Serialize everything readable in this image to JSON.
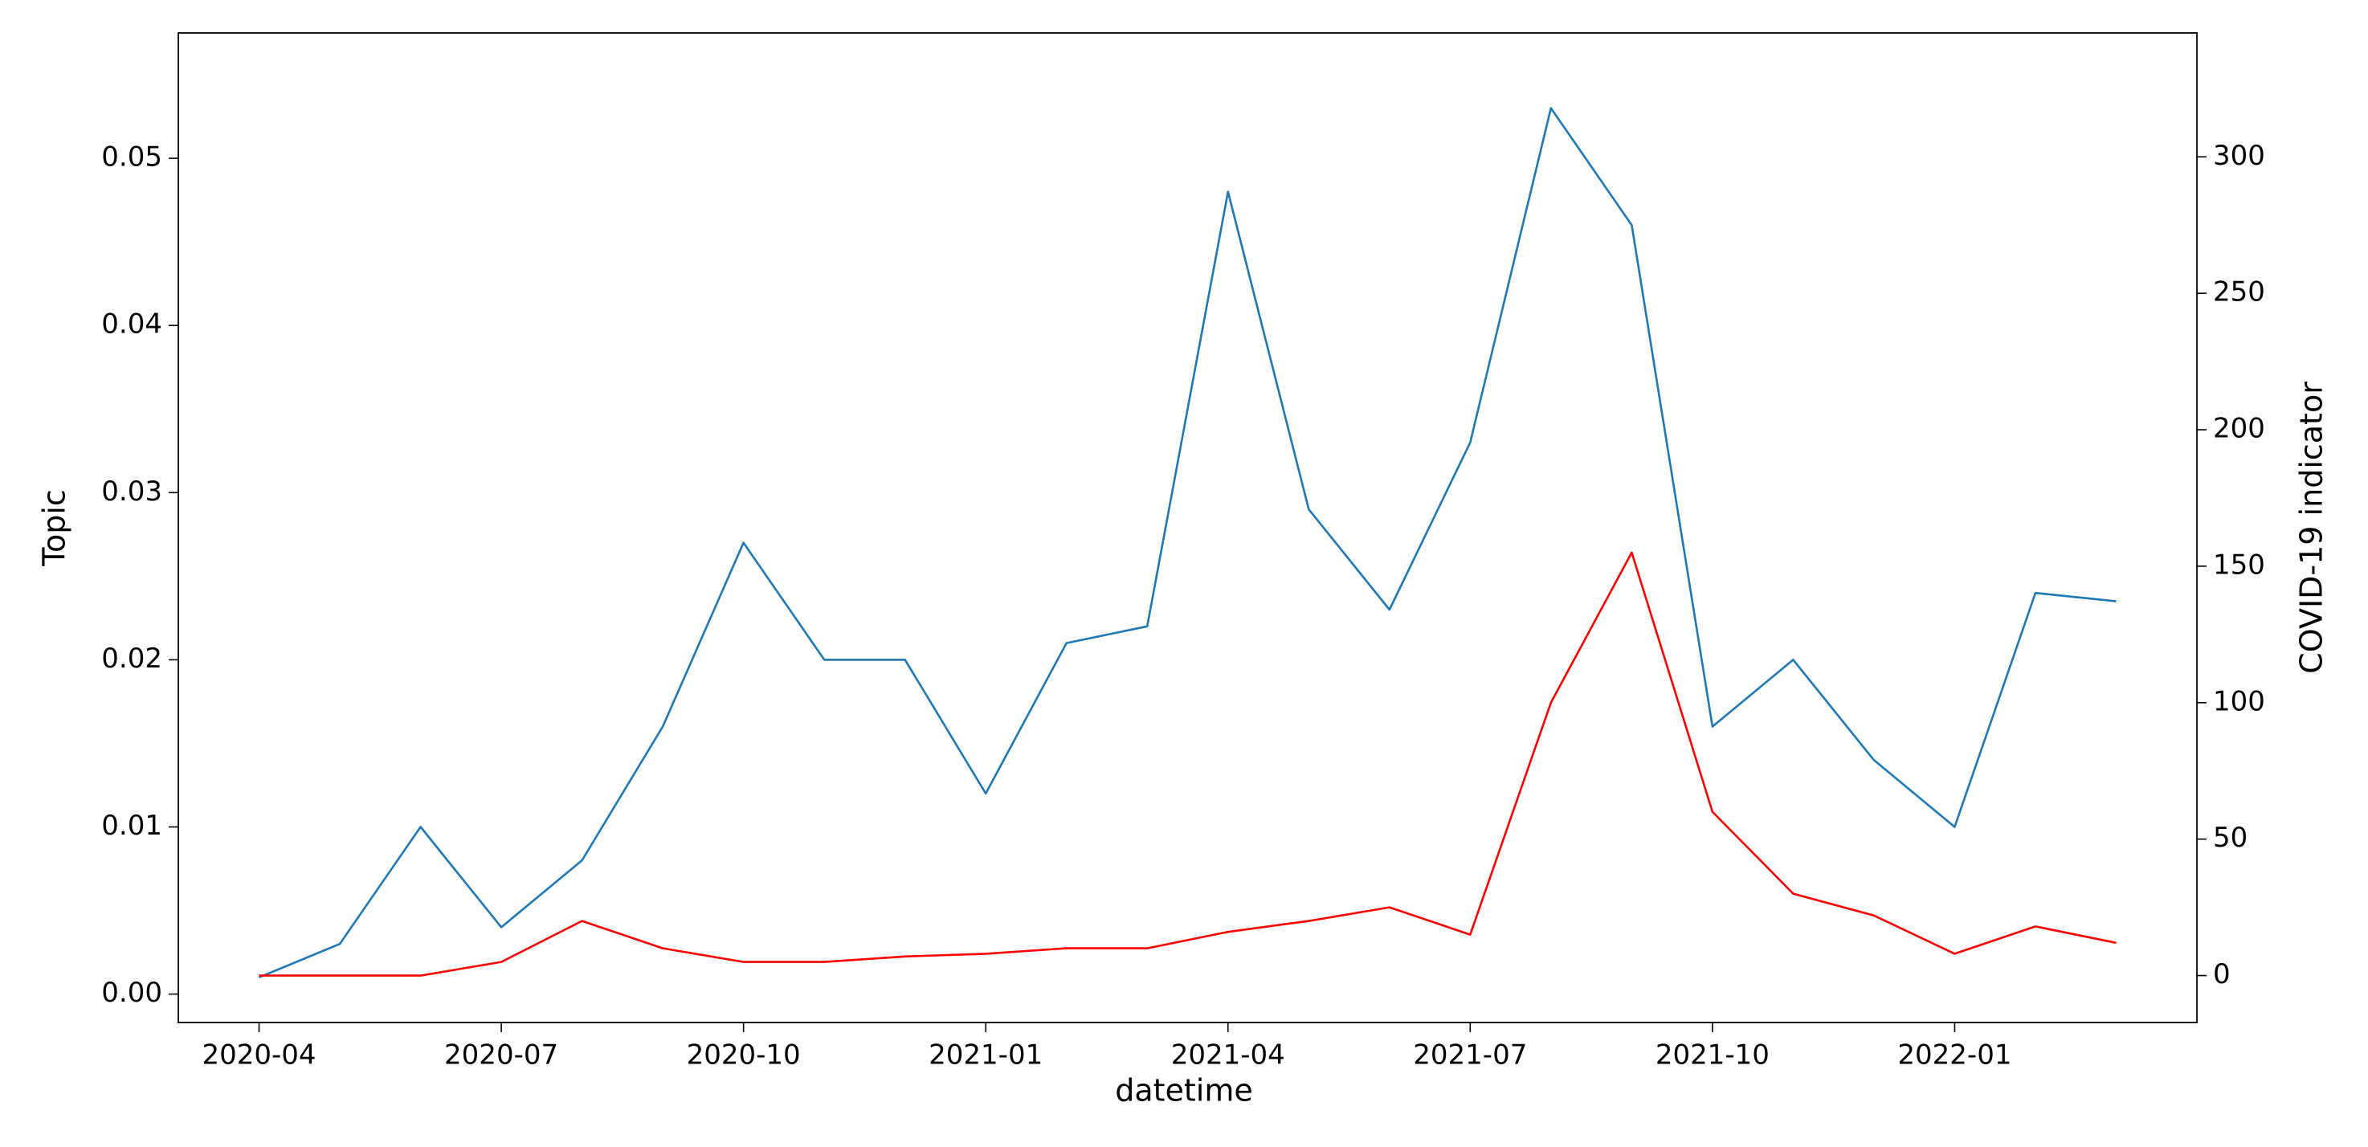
{
  "chart_data": {
    "type": "line",
    "x_label": "datetime",
    "y_label": "Topic",
    "y2_label": "COVID-19 indicator",
    "x": [
      "2020-04",
      "2020-05",
      "2020-06",
      "2020-07",
      "2020-08",
      "2020-09",
      "2020-10",
      "2020-11",
      "2020-12",
      "2021-01",
      "2021-02",
      "2021-03",
      "2021-04",
      "2021-05",
      "2021-06",
      "2021-07",
      "2021-08",
      "2021-09",
      "2021-10",
      "2021-11",
      "2021-12",
      "2022-01",
      "2022-02",
      "2022-03"
    ],
    "xlim": [
      "2020-03",
      "2022-04"
    ],
    "xticks": [
      "2020-04",
      "2020-07",
      "2020-10",
      "2021-01",
      "2021-04",
      "2021-07",
      "2021-10",
      "2022-01"
    ],
    "ylim": [
      -0.0017,
      0.0575
    ],
    "yticks": [
      {
        "value": 0,
        "label": "0.00"
      },
      {
        "value": 0.01,
        "label": "0.01"
      },
      {
        "value": 0.02,
        "label": "0.02"
      },
      {
        "value": 0.03,
        "label": "0.03"
      },
      {
        "value": 0.04,
        "label": "0.04"
      },
      {
        "value": 0.05,
        "label": "0.05"
      }
    ],
    "y2lim": [
      -17.2,
      345.4
    ],
    "y2ticks": [
      0,
      50,
      100,
      150,
      200,
      250,
      300
    ],
    "series": [
      {
        "color": "#1f77b4",
        "values": [
          0.001,
          0.003,
          0.01,
          0.004,
          0.008,
          0.016,
          0.027,
          0.02,
          0.02,
          0.012,
          0.021,
          0.022,
          0.048,
          0.029,
          0.023,
          0.033,
          0.053,
          0.046,
          0.016,
          0.02,
          0.014,
          0.01,
          0.024,
          0.0235
        ]
      },
      {
        "color": "#ff0000",
        "axis": "y2",
        "values": [
          0,
          0,
          0,
          5,
          20,
          10,
          5,
          5,
          7,
          8,
          10,
          10,
          16,
          20,
          25,
          15,
          100,
          155,
          60,
          30,
          22,
          8,
          18,
          12
        ]
      }
    ]
  }
}
